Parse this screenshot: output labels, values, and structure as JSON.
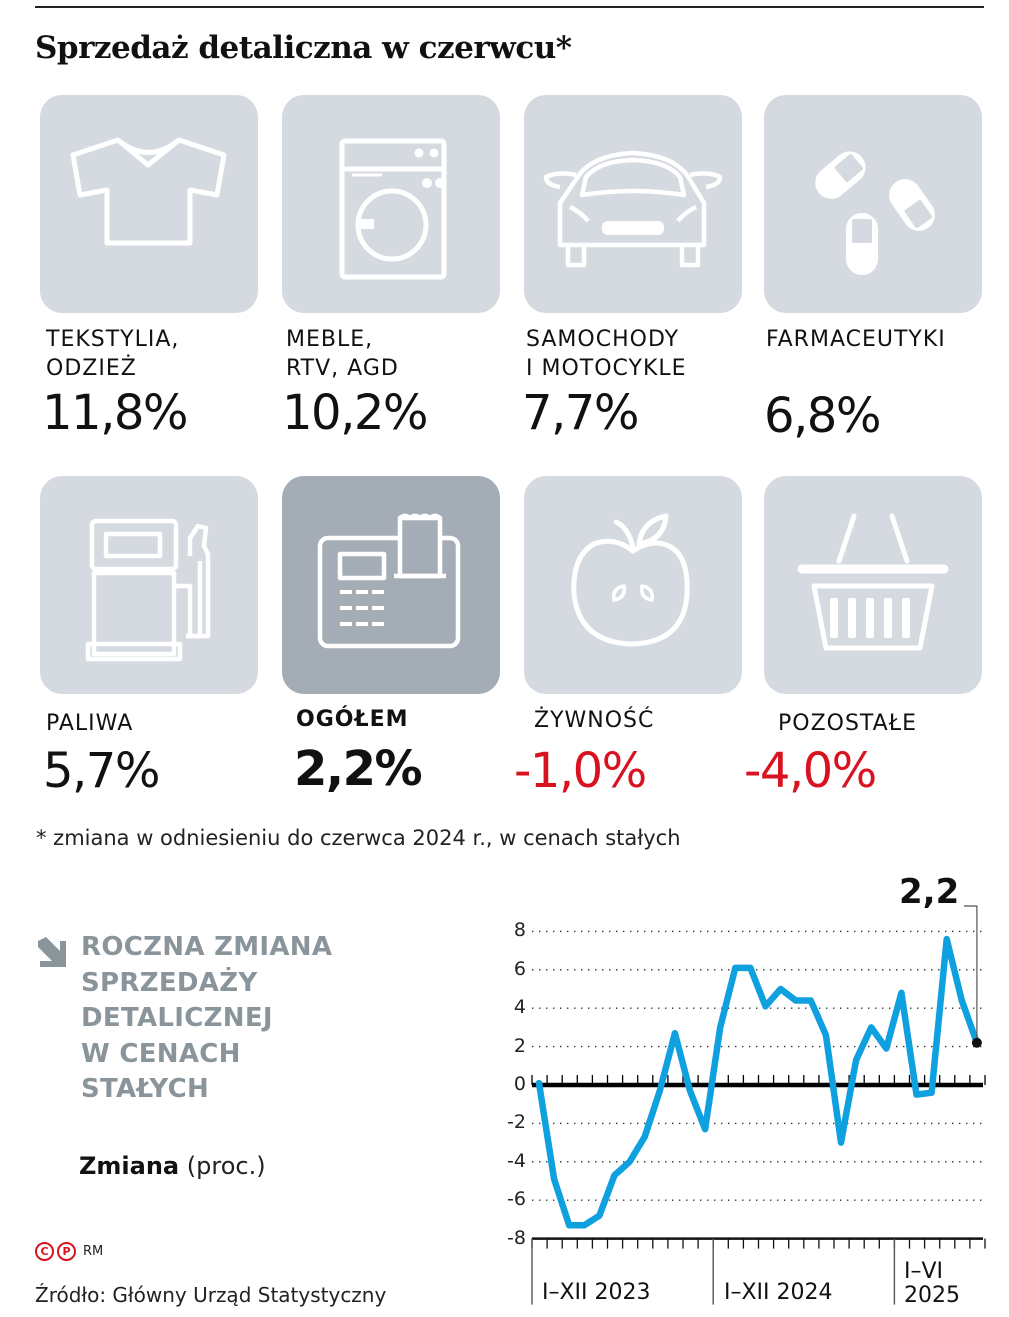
{
  "title": "Sprzedaż detaliczna w czerwcu*",
  "categories": [
    {
      "id": "tekstylia",
      "label": "TEKSTYLIA,\nODZIEŻ",
      "value": "11,8%",
      "icon": "tshirt-icon",
      "highlight": false,
      "negative": false
    },
    {
      "id": "meble",
      "label": "MEBLE,\nRTV, AGD",
      "value": "10,2%",
      "icon": "washing-machine-icon",
      "highlight": false,
      "negative": false
    },
    {
      "id": "samochody",
      "label": "SAMOCHODY\nI MOTOCYKLE",
      "value": "7,7%",
      "icon": "car-icon",
      "highlight": false,
      "negative": false
    },
    {
      "id": "farmaceutyki",
      "label": "FARMACEUTYKI",
      "value": "6,8%",
      "icon": "pills-icon",
      "highlight": false,
      "negative": false
    },
    {
      "id": "paliwa",
      "label": "PALIWA",
      "value": "5,7%",
      "icon": "fuel-pump-icon",
      "highlight": false,
      "negative": false
    },
    {
      "id": "ogolem",
      "label": "OGÓŁEM",
      "value": "2,2%",
      "icon": "cash-register-icon",
      "highlight": true,
      "negative": false
    },
    {
      "id": "zywnosc",
      "label": "ŻYWNOŚĆ",
      "value": "-1,0%",
      "icon": "apple-icon",
      "highlight": false,
      "negative": true
    },
    {
      "id": "pozostale",
      "label": "POZOSTAŁE",
      "value": "-4,0%",
      "icon": "basket-icon",
      "highlight": false,
      "negative": true
    }
  ],
  "footnote": "* zmiana w odniesieniu do czerwca 2024 r., w cenach stałych",
  "section": {
    "title_lines": [
      "ROCZNA ZMIANA",
      "SPRZEDAŻY",
      "DETALICZNEJ",
      "W CENACH",
      "STAŁYCH"
    ],
    "subtitle_bold": "Zmiana",
    "subtitle_unit": "(proc.)"
  },
  "credits": {
    "c": "C",
    "p": "P",
    "author": "RM"
  },
  "source": "Źródło: Główny Urząd Statystyczny",
  "colors": {
    "line": "#0fa0e0",
    "negative": "#d9121f",
    "tile": "#d5dae0",
    "tile_highlight": "#a4adb5",
    "section_title": "#8a949b"
  },
  "chart_data": {
    "type": "line",
    "title": "Roczna zmiana sprzedaży detalicznej w cenach stałych",
    "ylabel": "Zmiana (proc.)",
    "xlabel": "",
    "ylim": [
      -8,
      8
    ],
    "yticks": [
      8,
      6,
      4,
      2,
      0,
      -2,
      -4,
      -6,
      -8
    ],
    "ytick_labels": [
      "8",
      "6",
      "4",
      "2",
      "0",
      "-2",
      "-4",
      "-6",
      "-8"
    ],
    "grid": "dotted horizontal",
    "x_groups": [
      {
        "label": "I–XII 2023",
        "months": 12
      },
      {
        "label": "I–XII 2024",
        "months": 12
      },
      {
        "label": "I–VI\n2025",
        "months": 6
      }
    ],
    "x": [
      "2023-01",
      "2023-02",
      "2023-03",
      "2023-04",
      "2023-05",
      "2023-06",
      "2023-07",
      "2023-08",
      "2023-09",
      "2023-10",
      "2023-11",
      "2023-12",
      "2024-01",
      "2024-02",
      "2024-03",
      "2024-04",
      "2024-05",
      "2024-06",
      "2024-07",
      "2024-08",
      "2024-09",
      "2024-10",
      "2024-11",
      "2024-12",
      "2025-01",
      "2025-02",
      "2025-03",
      "2025-04",
      "2025-05",
      "2025-06"
    ],
    "series": [
      {
        "name": "Sprzedaż detaliczna r/r",
        "values": [
          0.1,
          -4.9,
          -7.3,
          -7.3,
          -6.8,
          -4.7,
          -4.0,
          -2.7,
          -0.3,
          2.7,
          -0.3,
          -2.3,
          3.0,
          6.1,
          6.1,
          4.1,
          5.0,
          4.4,
          4.4,
          2.6,
          -3.0,
          1.3,
          3.0,
          1.9,
          4.8,
          -0.5,
          -0.4,
          7.6,
          4.4,
          2.2
        ]
      }
    ],
    "annotations": [
      {
        "x": "2025-06",
        "y": 2.2,
        "text": "2,2"
      }
    ],
    "legend": "none"
  }
}
